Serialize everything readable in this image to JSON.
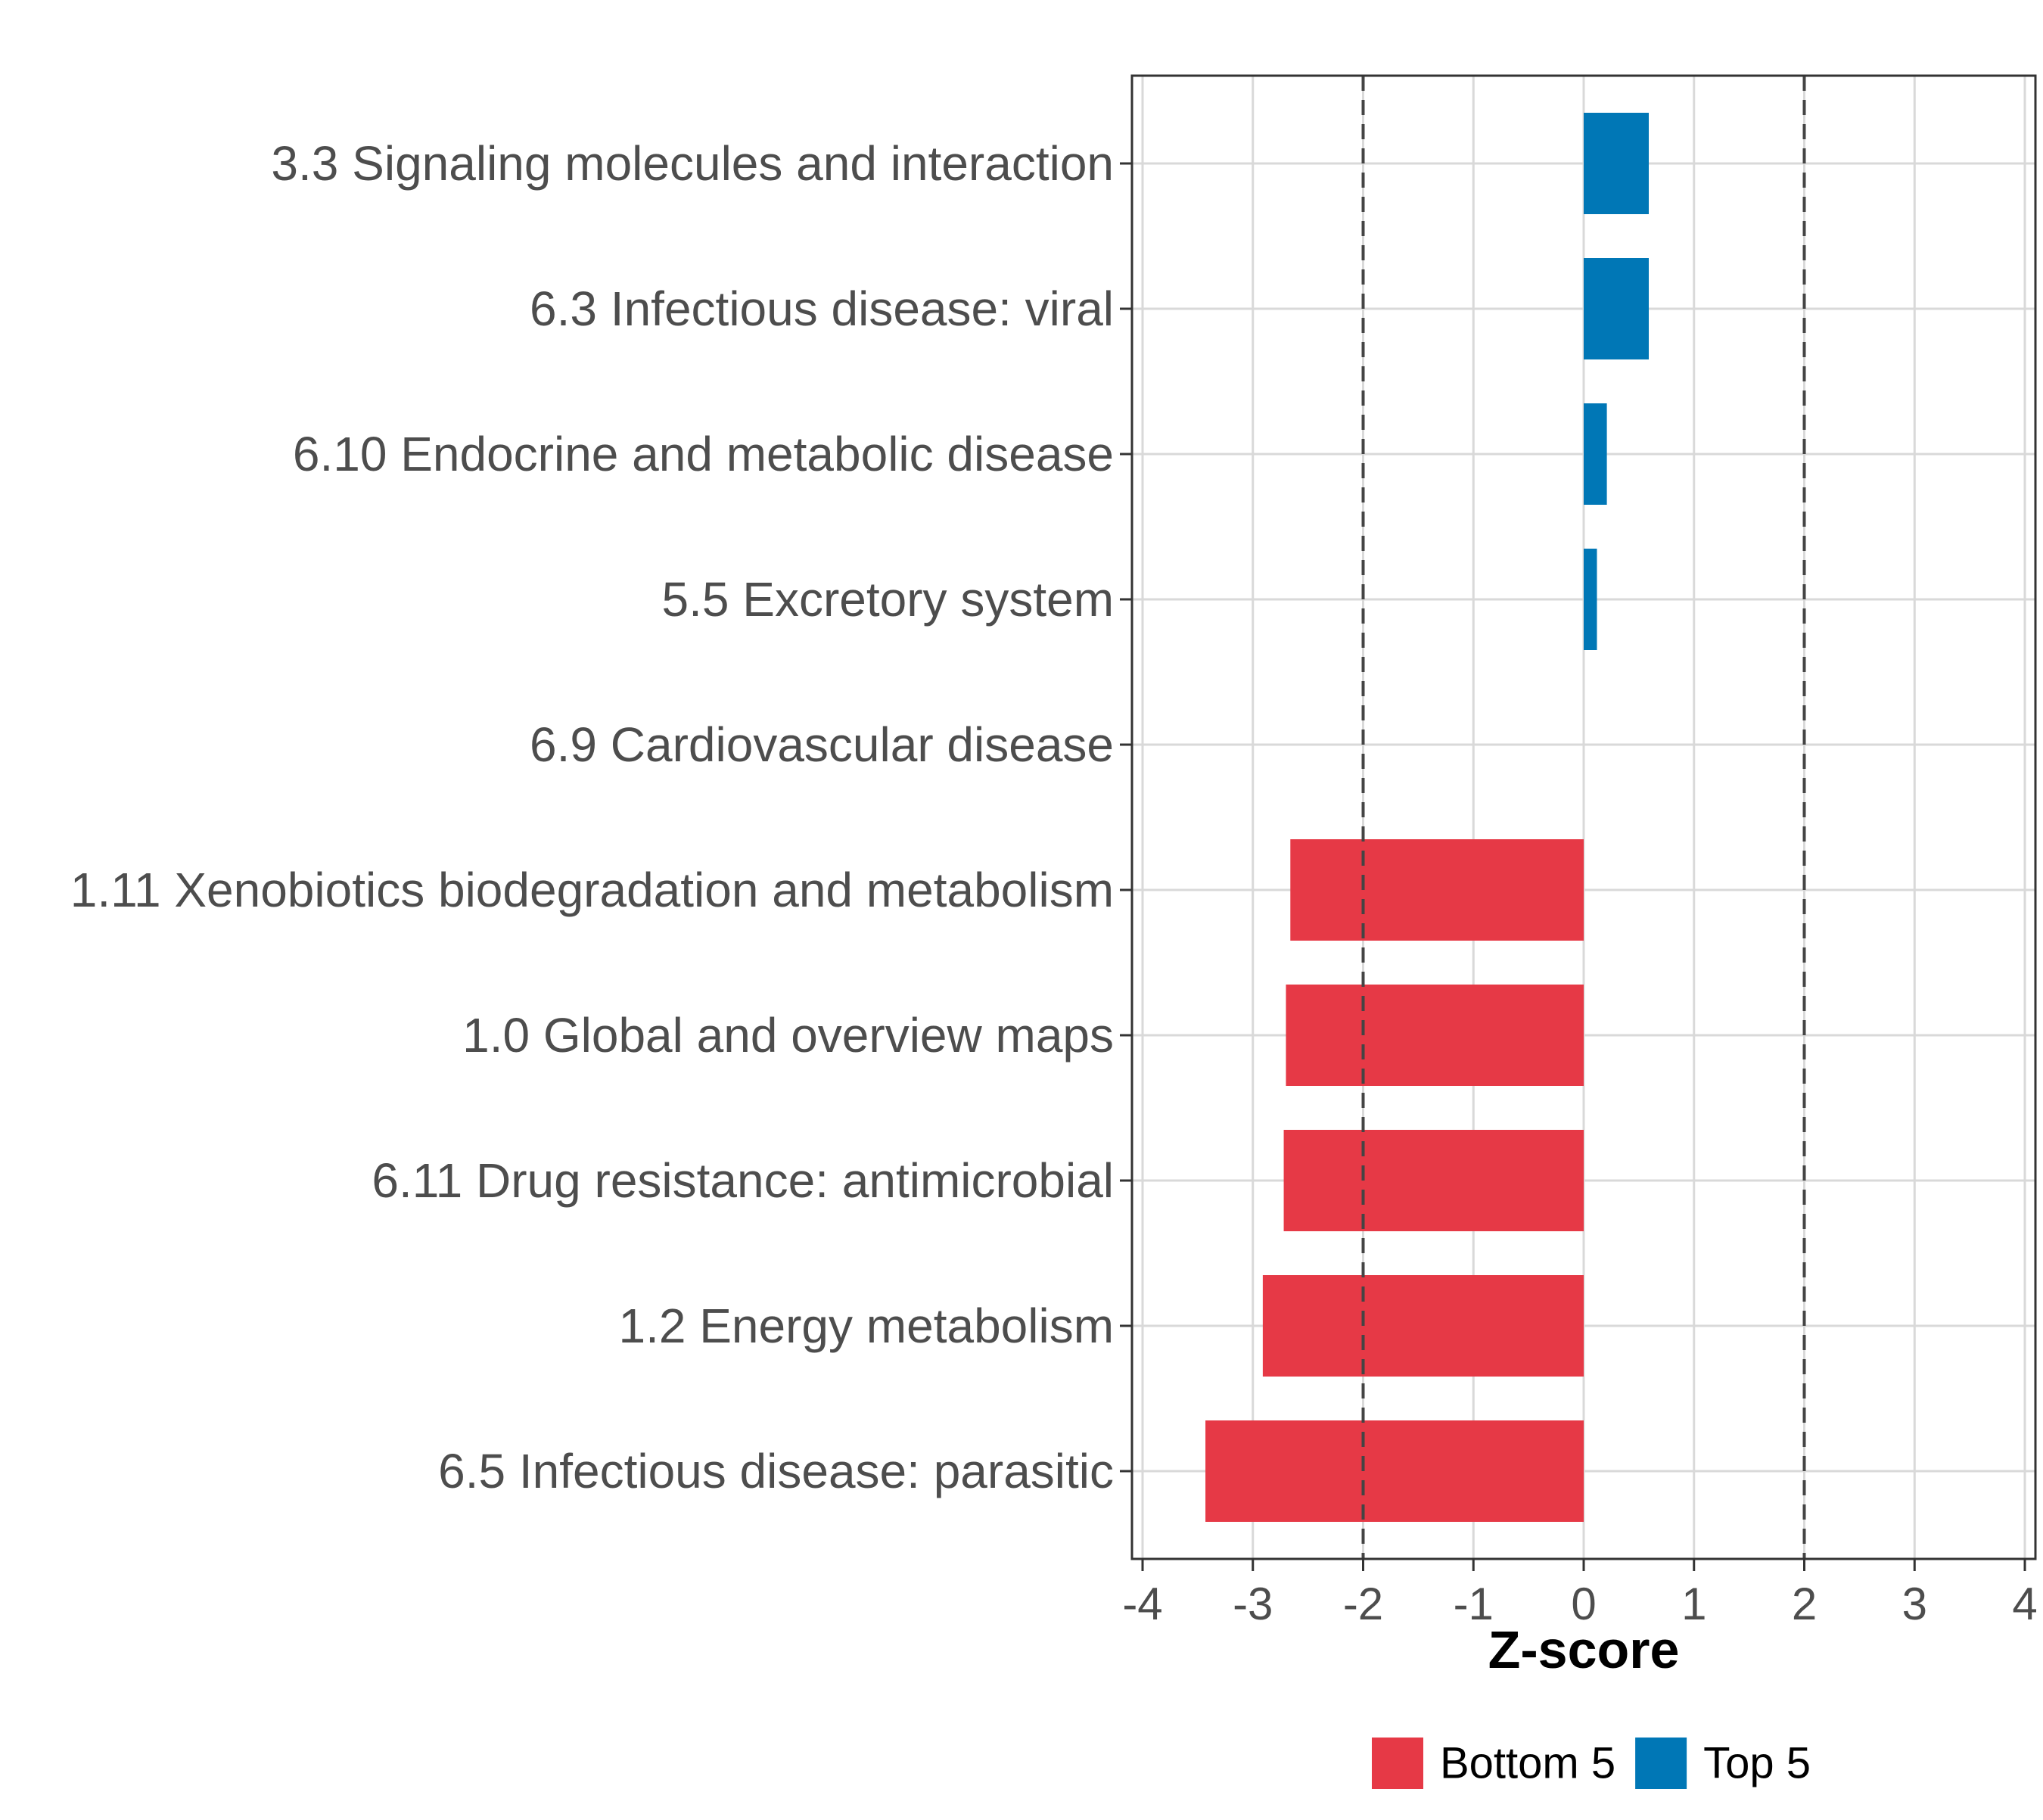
{
  "chart_data": {
    "type": "bar",
    "orientation": "horizontal",
    "title": "",
    "xlabel": "Z-score",
    "ylabel": "",
    "xlim": [
      -4,
      4
    ],
    "xticks": [
      -4,
      -3,
      -2,
      -1,
      0,
      1,
      2,
      3,
      4
    ],
    "xtick_labels": [
      "-4",
      "-3",
      "-2",
      "-1",
      "0",
      "1",
      "2",
      "3",
      "4"
    ],
    "reference_lines": [
      -2,
      2
    ],
    "grid": true,
    "categories": [
      "3.3 Signaling molecules and interaction",
      "6.3 Infectious disease: viral",
      "6.10 Endocrine and metabolic disease",
      "5.5 Excretory system",
      "6.9 Cardiovascular disease",
      "1.11 Xenobiotics biodegradation and metabolism",
      "1.0 Global and overview maps",
      "6.11 Drug resistance: antimicrobial",
      "1.2 Energy metabolism",
      "6.5 Infectious disease: parasitic"
    ],
    "values": [
      0.59,
      0.59,
      0.21,
      0.12,
      0.0,
      -2.66,
      -2.7,
      -2.72,
      -2.91,
      -3.43
    ],
    "groups": [
      "Top 5",
      "Top 5",
      "Top 5",
      "Top 5",
      "Top 5",
      "Bottom 5",
      "Bottom 5",
      "Bottom 5",
      "Bottom 5",
      "Bottom 5"
    ],
    "legend": {
      "position": "bottom",
      "entries": [
        {
          "label": "Bottom 5",
          "color": "#e63946"
        },
        {
          "label": "Top 5",
          "color": "#0077b6"
        }
      ]
    }
  }
}
